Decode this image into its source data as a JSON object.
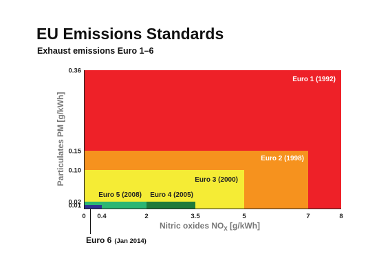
{
  "title": "EU Emissions Standards",
  "subtitle": "Exhaust emissions Euro 1–6",
  "chart_data": {
    "type": "area",
    "title": "EU Emissions Standards",
    "subtitle": "Exhaust emissions Euro 1–6",
    "xlabel_main": "Nitric oxides NO",
    "xlabel_sub": "X",
    "xlabel_unit": " [g/kWh]",
    "ylabel": "Particulates PM [g/kWh]",
    "x_ticks": [
      "0",
      "0.4",
      "2",
      "3.5",
      "5",
      "7",
      "8"
    ],
    "y_ticks": [
      "0.01",
      "0.02",
      "0.10",
      "0.15",
      "0.36"
    ],
    "series": [
      {
        "name": "Euro 1 (1992)",
        "nox": 8,
        "pm": 0.36,
        "color": "#ee2128",
        "label_color": "#ffffff"
      },
      {
        "name": "Euro 2 (1998)",
        "nox": 7,
        "pm": 0.15,
        "color": "#f6921e",
        "label_color": "#ffffff"
      },
      {
        "name": "Euro 3 (2000)",
        "nox": 5,
        "pm": 0.1,
        "color": "#f5ec35",
        "label_color": "#222222"
      },
      {
        "name": "Euro 4 (2005)",
        "nox": 3.5,
        "pm": 0.02,
        "color": "#1f7a3a",
        "label_color": "#222222"
      },
      {
        "name": "Euro 5 (2008)",
        "nox": 2,
        "pm": 0.02,
        "color": "#2bb673",
        "label_color": "#222222"
      },
      {
        "name": "Euro 6",
        "nox": 0.4,
        "pm": 0.01,
        "color": "#2e3192",
        "label_color": "#111111"
      }
    ],
    "euro6_label": "Euro 6",
    "euro6_date": "(Jan 2014)"
  }
}
